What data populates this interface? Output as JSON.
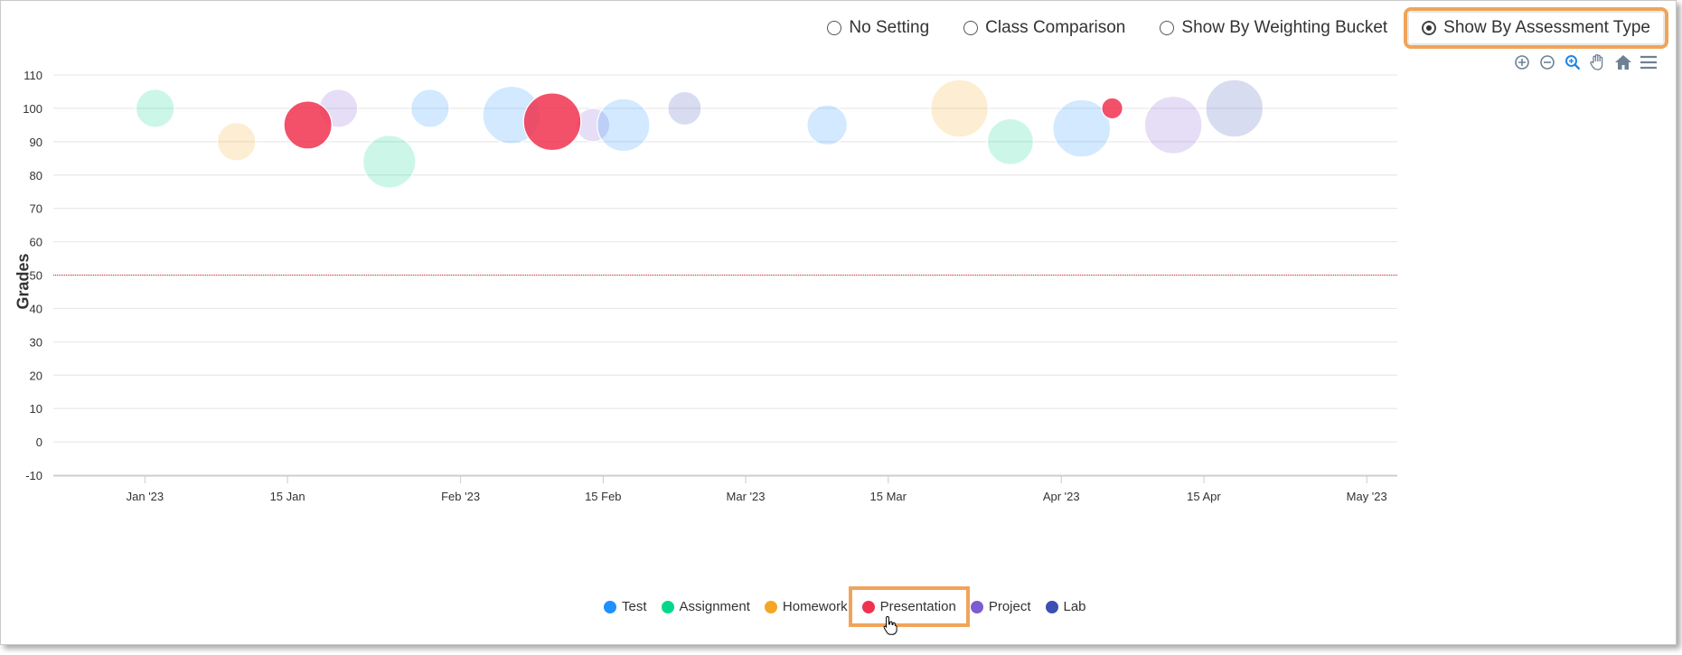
{
  "radio_options": [
    {
      "label": "No Setting",
      "selected": false
    },
    {
      "label": "Class Comparison",
      "selected": false
    },
    {
      "label": "Show By Weighting Bucket",
      "selected": false
    },
    {
      "label": "Show By Assessment Type",
      "selected": true
    }
  ],
  "toolbar_icons": [
    "zoom-in-icon",
    "zoom-out-icon",
    "magnifier-icon",
    "pan-hand-icon",
    "home-icon",
    "menu-icon"
  ],
  "colors": {
    "Test": "#1e90ff",
    "Assignment": "#00d98b",
    "Homework": "#f5a623",
    "Presentation": "#f0324f",
    "Project": "#7d5bd0",
    "Lab": "#3c4fb3",
    "threshold": "#d62d2d",
    "highlight": "#f0a45a"
  },
  "chart_data": {
    "type": "scatter",
    "ylabel": "Grades",
    "xlabel": "",
    "ylim": [
      -10,
      110
    ],
    "yticks": [
      -10,
      0,
      10,
      20,
      30,
      40,
      50,
      60,
      70,
      80,
      90,
      100,
      110
    ],
    "xlim": [
      "2022-12-23",
      "2023-05-04"
    ],
    "xticks": [
      {
        "date": "2023-01-01",
        "label": "Jan '23"
      },
      {
        "date": "2023-01-15",
        "label": "15 Jan"
      },
      {
        "date": "2023-02-01",
        "label": "Feb '23"
      },
      {
        "date": "2023-02-15",
        "label": "15 Feb"
      },
      {
        "date": "2023-03-01",
        "label": "Mar '23"
      },
      {
        "date": "2023-03-15",
        "label": "15 Mar"
      },
      {
        "date": "2023-04-01",
        "label": "Apr '23"
      },
      {
        "date": "2023-04-15",
        "label": "15 Apr"
      },
      {
        "date": "2023-05-01",
        "label": "May '23"
      }
    ],
    "threshold": 50,
    "grid": true,
    "legend_position": "bottom-center",
    "series": [
      {
        "name": "Test",
        "points": [
          {
            "x": "2023-01-29",
            "y": 100,
            "size": 4
          },
          {
            "x": "2023-02-06",
            "y": 98,
            "size": 6
          },
          {
            "x": "2023-02-17",
            "y": 95,
            "size": 5.5
          },
          {
            "x": "2023-03-09",
            "y": 95,
            "size": 4.2
          },
          {
            "x": "2023-04-03",
            "y": 94,
            "size": 6
          }
        ]
      },
      {
        "name": "Assignment",
        "points": [
          {
            "x": "2023-01-02",
            "y": 100,
            "size": 4
          },
          {
            "x": "2023-01-25",
            "y": 84,
            "size": 5.5
          },
          {
            "x": "2023-03-27",
            "y": 90,
            "size": 4.8
          }
        ]
      },
      {
        "name": "Homework",
        "points": [
          {
            "x": "2023-01-10",
            "y": 90,
            "size": 4
          },
          {
            "x": "2023-03-22",
            "y": 100,
            "size": 6
          }
        ]
      },
      {
        "name": "Presentation",
        "points": [
          {
            "x": "2023-01-17",
            "y": 95,
            "size": 5
          },
          {
            "x": "2023-02-10",
            "y": 96,
            "size": 6
          },
          {
            "x": "2023-04-06",
            "y": 100,
            "size": 2.2
          }
        ]
      },
      {
        "name": "Project",
        "points": [
          {
            "x": "2023-01-20",
            "y": 100,
            "size": 4
          },
          {
            "x": "2023-02-14",
            "y": 95,
            "size": 3.5
          },
          {
            "x": "2023-04-12",
            "y": 95,
            "size": 6
          }
        ]
      },
      {
        "name": "Lab",
        "points": [
          {
            "x": "2023-02-23",
            "y": 100,
            "size": 3.5
          },
          {
            "x": "2023-04-18",
            "y": 100,
            "size": 6
          }
        ]
      }
    ]
  }
}
